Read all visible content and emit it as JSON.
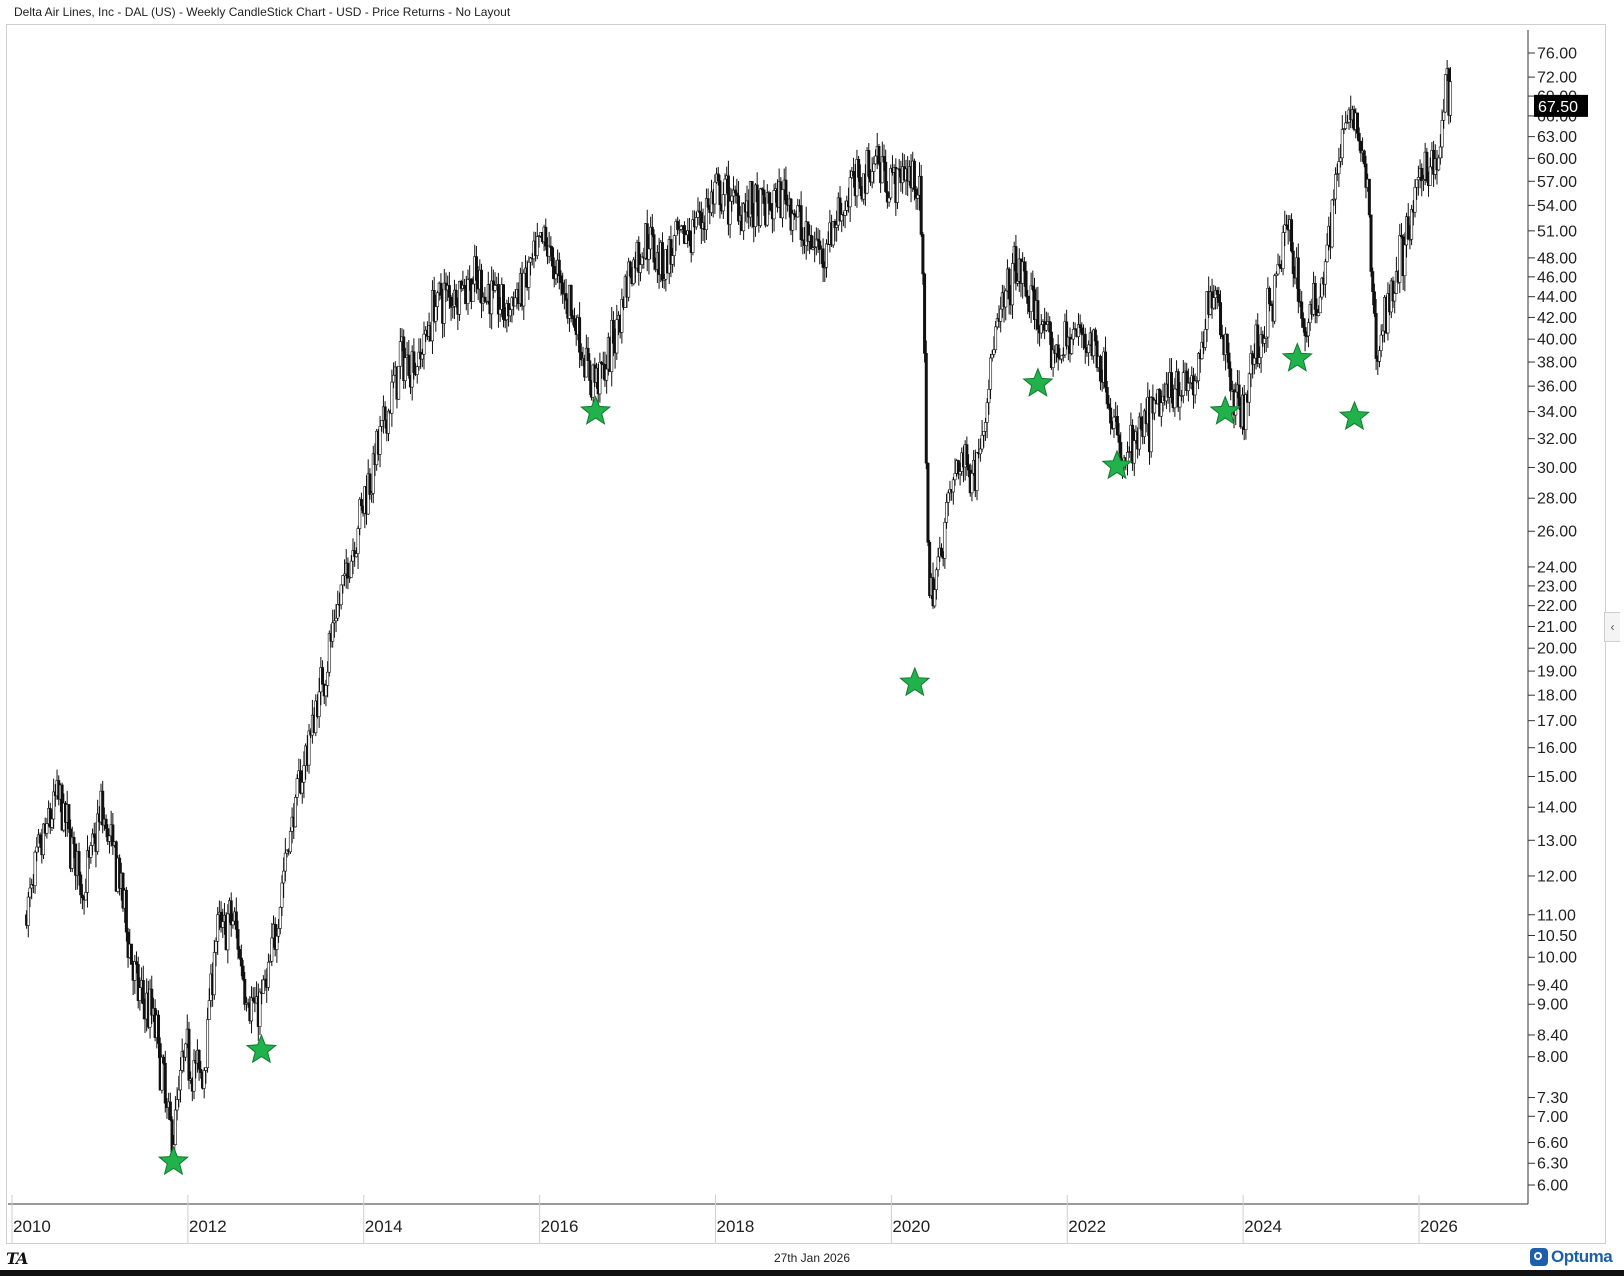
{
  "header": {
    "title": "Delta Air Lines, Inc - DAL (US) - Weekly CandleStick Chart - USD - Price Returns - No Layout"
  },
  "footer": {
    "date": "27th Jan 2026",
    "left_logo": "TA",
    "right_logo": "Optuma"
  },
  "colors": {
    "candle": "#111111",
    "marker": "#22b24c",
    "marker_edge": "#0e7a2e",
    "badge_bg": "#000000"
  },
  "chart_data": {
    "type": "candlestick",
    "title": "Delta Air Lines, Inc - DAL (US) - Weekly CandleStick Chart - USD - Price Returns - No Layout",
    "y_scale": "log",
    "ylim": [
      5.6,
      84
    ],
    "xlim": [
      2009.95,
      2027.0
    ],
    "y_ticks": [
      "76.00",
      "72.00",
      "69.00",
      "66.00",
      "63.00",
      "60.00",
      "57.00",
      "54.00",
      "51.00",
      "48.00",
      "46.00",
      "44.00",
      "42.00",
      "40.00",
      "38.00",
      "36.00",
      "34.00",
      "32.00",
      "30.00",
      "28.00",
      "26.00",
      "24.00",
      "23.00",
      "22.00",
      "21.00",
      "20.00",
      "19.00",
      "18.00",
      "17.00",
      "16.00",
      "15.00",
      "14.00",
      "13.00",
      "12.00",
      "11.00",
      "10.50",
      "10.00",
      "9.40",
      "9.00",
      "8.40",
      "8.00",
      "7.30",
      "7.00",
      "6.60",
      "6.30",
      "6.00"
    ],
    "x_ticks": [
      "2010",
      "2012",
      "2014",
      "2016",
      "2018",
      "2020",
      "2022",
      "2024",
      "2026"
    ],
    "last_price": "67.50",
    "price_path": [
      [
        2009.95,
        11.0
      ],
      [
        2010.1,
        12.6
      ],
      [
        2010.3,
        14.4
      ],
      [
        2010.45,
        13.0
      ],
      [
        2010.6,
        11.6
      ],
      [
        2010.8,
        13.9
      ],
      [
        2011.0,
        12.0
      ],
      [
        2011.2,
        9.3
      ],
      [
        2011.4,
        8.7
      ],
      [
        2011.6,
        6.6
      ],
      [
        2011.75,
        8.1
      ],
      [
        2011.95,
        7.6
      ],
      [
        2012.1,
        10.5
      ],
      [
        2012.3,
        10.9
      ],
      [
        2012.45,
        9.3
      ],
      [
        2012.55,
        8.8
      ],
      [
        2012.7,
        9.5
      ],
      [
        2012.9,
        12.6
      ],
      [
        2013.1,
        15.4
      ],
      [
        2013.3,
        18.4
      ],
      [
        2013.55,
        23.0
      ],
      [
        2013.8,
        28.3
      ],
      [
        2014.0,
        32.5
      ],
      [
        2014.2,
        38.2
      ],
      [
        2014.4,
        38.0
      ],
      [
        2014.6,
        43.5
      ],
      [
        2014.8,
        44.5
      ],
      [
        2015.0,
        45.5
      ],
      [
        2015.2,
        44.5
      ],
      [
        2015.4,
        42.5
      ],
      [
        2015.6,
        45.0
      ],
      [
        2015.85,
        50.0
      ],
      [
        2016.0,
        45.5
      ],
      [
        2016.15,
        43.0
      ],
      [
        2016.35,
        36.5
      ],
      [
        2016.55,
        37.5
      ],
      [
        2016.8,
        46.5
      ],
      [
        2017.0,
        50.0
      ],
      [
        2017.2,
        47.5
      ],
      [
        2017.5,
        51.0
      ],
      [
        2017.8,
        55.0
      ],
      [
        2018.0,
        54.5
      ],
      [
        2018.3,
        53.0
      ],
      [
        2018.6,
        55.5
      ],
      [
        2018.8,
        50.0
      ],
      [
        2019.0,
        49.0
      ],
      [
        2019.3,
        55.5
      ],
      [
        2019.6,
        60.0
      ],
      [
        2019.8,
        57.0
      ],
      [
        2019.95,
        58.0
      ],
      [
        2020.1,
        57.0
      ],
      [
        2020.15,
        42.0
      ],
      [
        2020.22,
        22.0
      ],
      [
        2020.3,
        23.5
      ],
      [
        2020.4,
        27.0
      ],
      [
        2020.55,
        30.5
      ],
      [
        2020.75,
        30.0
      ],
      [
        2020.95,
        39.5
      ],
      [
        2021.2,
        47.0
      ],
      [
        2021.45,
        42.0
      ],
      [
        2021.6,
        38.5
      ],
      [
        2021.8,
        40.0
      ],
      [
        2022.0,
        40.5
      ],
      [
        2022.2,
        37.5
      ],
      [
        2022.4,
        30.0
      ],
      [
        2022.55,
        31.5
      ],
      [
        2022.75,
        33.5
      ],
      [
        2023.0,
        36.5
      ],
      [
        2023.25,
        36.0
      ],
      [
        2023.45,
        46.0
      ],
      [
        2023.6,
        38.5
      ],
      [
        2023.75,
        33.5
      ],
      [
        2023.9,
        38.0
      ],
      [
        2024.1,
        43.0
      ],
      [
        2024.3,
        52.0
      ],
      [
        2024.5,
        40.0
      ],
      [
        2024.7,
        47.0
      ],
      [
        2024.9,
        62.0
      ],
      [
        2025.05,
        66.5
      ],
      [
        2025.2,
        55.0
      ],
      [
        2025.3,
        38.0
      ],
      [
        2025.45,
        44.5
      ],
      [
        2025.65,
        50.0
      ],
      [
        2025.85,
        60.0
      ],
      [
        2026.0,
        58.5
      ],
      [
        2026.1,
        71.5
      ],
      [
        2026.15,
        67.5
      ]
    ],
    "markers": [
      {
        "x": 2011.62,
        "y": 6.32
      },
      {
        "x": 2012.62,
        "y": 8.12
      },
      {
        "x": 2016.42,
        "y": 34.0
      },
      {
        "x": 2020.05,
        "y": 18.5
      },
      {
        "x": 2021.45,
        "y": 36.2
      },
      {
        "x": 2022.35,
        "y": 30.1
      },
      {
        "x": 2023.58,
        "y": 34.0
      },
      {
        "x": 2024.4,
        "y": 38.3
      },
      {
        "x": 2025.05,
        "y": 33.6
      }
    ]
  }
}
